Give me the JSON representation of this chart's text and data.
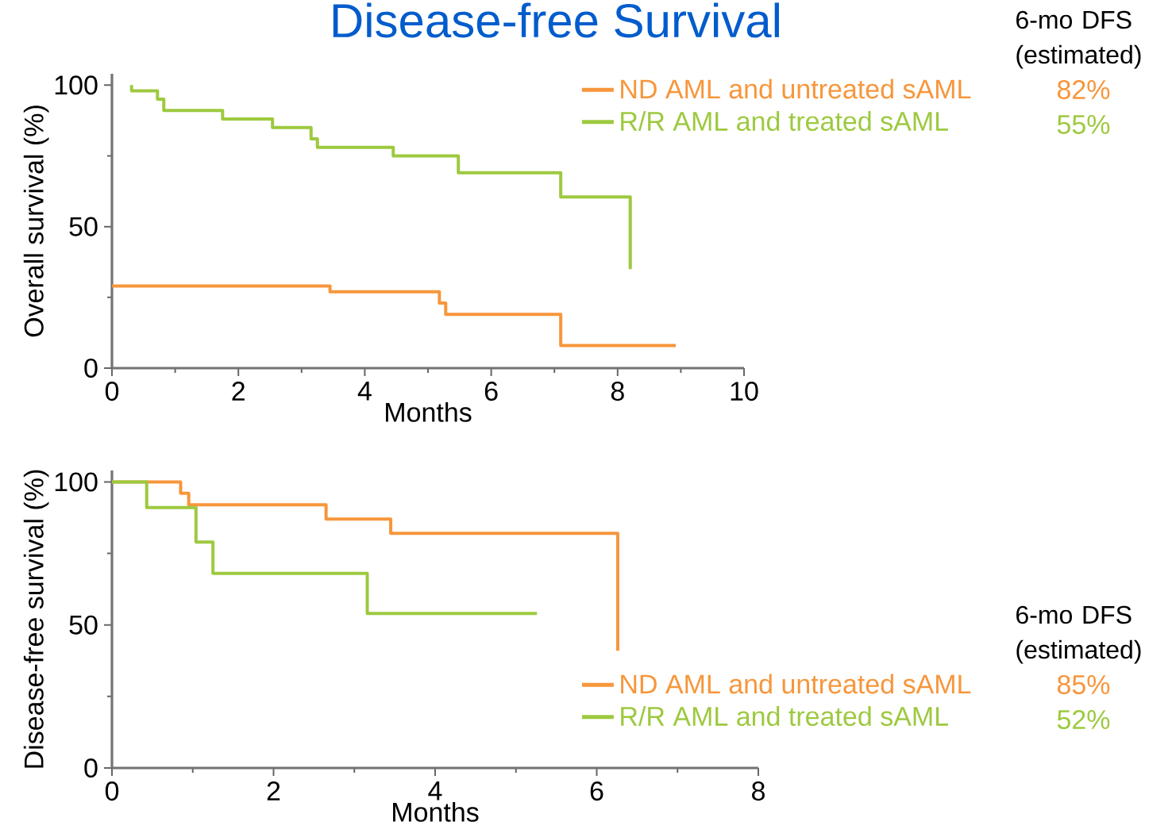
{
  "chart_data": [
    {
      "type": "step",
      "title": "Disease-free Survival",
      "xlabel": "Months",
      "ylabel": "Overall survival (%)",
      "xlim": [
        0,
        10
      ],
      "ylim": [
        0,
        104
      ],
      "xticks": [
        0,
        2,
        4,
        6,
        8,
        10
      ],
      "yticks": [
        0,
        50,
        100
      ],
      "legend": "top right",
      "annotations": [
        "6-mo DFS (estimated)",
        "82%",
        "55%"
      ],
      "series": [
        {
          "name": "ND AML and untreated sAML",
          "color": "#f7963b",
          "x": [
            0,
            3.45,
            5.18,
            5.28,
            7.1,
            8.92
          ],
          "values": [
            29,
            27,
            23,
            19,
            8,
            8
          ]
        },
        {
          "name": "R/R AML and treated sAML",
          "color": "#9dc93f",
          "x": [
            0.31,
            0.31,
            0.72,
            0.82,
            1.75,
            2.54,
            3.15,
            3.25,
            4.45,
            5.48,
            7.1,
            8.2,
            8.2
          ],
          "values": [
            100,
            98,
            95,
            91,
            88,
            85,
            81,
            78,
            75,
            69,
            60.5,
            60.5,
            35
          ]
        }
      ]
    },
    {
      "type": "step",
      "xlabel": "Months",
      "ylabel": "Disease-free survival (%)",
      "xlim": [
        0,
        8
      ],
      "ylim": [
        0,
        104
      ],
      "xticks": [
        0,
        2,
        4,
        6,
        8
      ],
      "yticks": [
        0,
        50,
        100
      ],
      "legend": "bottom right",
      "annotations": [
        "6-mo DFS (estimated)",
        "85%",
        "52%"
      ],
      "series": [
        {
          "name": "ND AML and untreated sAML",
          "color": "#f7963b",
          "x": [
            0,
            0.85,
            0.95,
            2.65,
            3.45,
            6.26,
            6.26
          ],
          "values": [
            100,
            96,
            92,
            87,
            82,
            82,
            41
          ]
        },
        {
          "name": "R/R AML and treated sAML",
          "color": "#9dc93f",
          "x": [
            0,
            0.43,
            1.04,
            1.25,
            3.16,
            5.26
          ],
          "values": [
            100,
            91,
            79,
            68,
            54,
            54
          ]
        }
      ]
    }
  ]
}
